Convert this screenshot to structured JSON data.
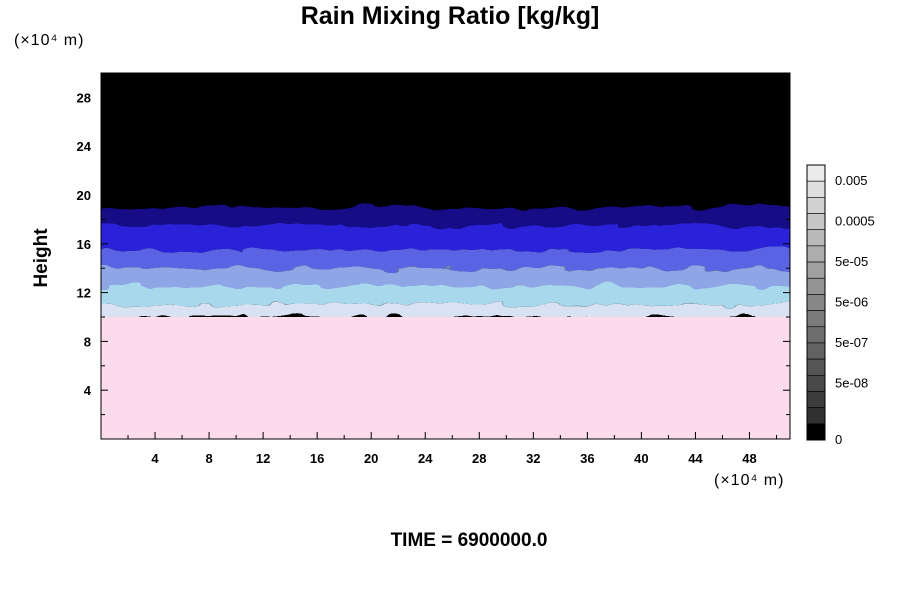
{
  "chart_data": {
    "type": "heatmap",
    "title": "Rain Mixing Ratio [kg/kg]",
    "xlabel": "",
    "ylabel": "Height",
    "x_unit": "(×10⁴ m)",
    "y_unit": "(×10⁴ m)",
    "xlim": [
      0,
      51
    ],
    "ylim": [
      0,
      30
    ],
    "x_ticks": [
      4,
      8,
      12,
      16,
      20,
      24,
      28,
      32,
      36,
      40,
      44,
      48
    ],
    "y_ticks": [
      4,
      8,
      12,
      16,
      20,
      24,
      28
    ],
    "colorbar": {
      "labels": [
        "0.005",
        "0.0005",
        "5e-05",
        "5e-06",
        "5e-07",
        "5e-08",
        "0"
      ],
      "levels": 17
    },
    "layers": [
      {
        "from": 0,
        "to": 10,
        "color": "#fcdcec"
      },
      {
        "from": 10,
        "to": 11,
        "color": "#d8e2f2"
      },
      {
        "from": 11,
        "to": 12.5,
        "color": "#a8d8ec"
      },
      {
        "from": 12.5,
        "to": 14,
        "color": "#8ea6e6"
      },
      {
        "from": 14,
        "to": 15.5,
        "color": "#5a64e4"
      },
      {
        "from": 15.5,
        "to": 17.5,
        "color": "#2a22d8"
      },
      {
        "from": 17.5,
        "to": 19,
        "color": "#140a86"
      },
      {
        "from": 19,
        "to": 30,
        "color": "#000000"
      }
    ],
    "grid": false
  },
  "footer": {
    "time_label": "TIME = 6900000.0"
  }
}
